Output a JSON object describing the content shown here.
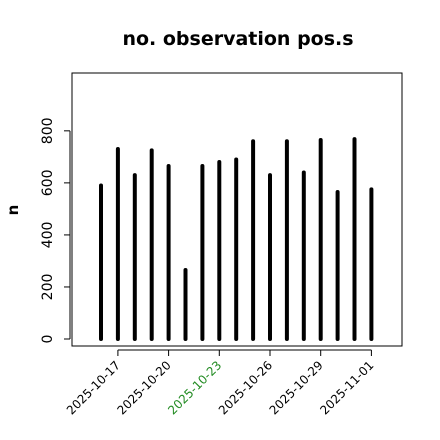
{
  "chart_data": {
    "type": "bar",
    "title": "no. observation pos.s",
    "ylabel": "n",
    "xlabel": "",
    "ylim": [
      0,
      980
    ],
    "yticks": [
      0,
      200,
      400,
      600,
      800
    ],
    "grid": false,
    "x": [
      "2025-10-16",
      "2025-10-17",
      "2025-10-18",
      "2025-10-19",
      "2025-10-20",
      "2025-10-21",
      "2025-10-22",
      "2025-10-23",
      "2025-10-24",
      "2025-10-25",
      "2025-10-26",
      "2025-10-27",
      "2025-10-28",
      "2025-10-29",
      "2025-10-30",
      "2025-10-31",
      "2025-11-01"
    ],
    "values": [
      590,
      730,
      630,
      725,
      665,
      265,
      665,
      680,
      690,
      760,
      630,
      760,
      640,
      765,
      565,
      768,
      575
    ],
    "x_tick_labels": [
      {
        "label": "2025-10-17",
        "color": "#000000"
      },
      {
        "label": "2025-10-20",
        "color": "#000000"
      },
      {
        "label": "2025-10-23",
        "color": "#228B22"
      },
      {
        "label": "2025-10-26",
        "color": "#000000"
      },
      {
        "label": "2025-10-29",
        "color": "#000000"
      },
      {
        "label": "2025-11-01",
        "color": "#000000"
      }
    ],
    "bar_color": "#000000"
  }
}
